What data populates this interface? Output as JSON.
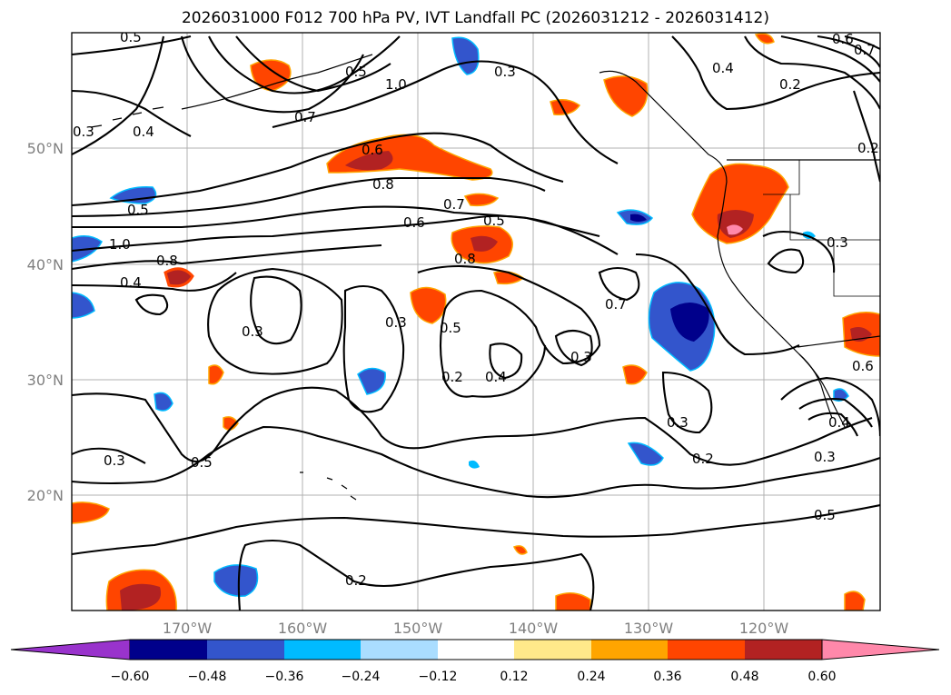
{
  "title": "2026031000 F012 700 hPa PV, IVT Landfall PC (2026031212 - 2026031412)",
  "axes": {
    "lat_ticks": [
      "50°N",
      "40°N",
      "30°N",
      "20°N"
    ],
    "lon_ticks": [
      "170°W",
      "160°W",
      "150°W",
      "140°W",
      "130°W",
      "120°W"
    ]
  },
  "contour_labels": [
    "0.5",
    "0.3",
    "0.5",
    "1.0",
    "0.8",
    "0.3",
    "0.4",
    "0.6",
    "0.2",
    "0.3",
    "0.7",
    "0.4",
    "0.6",
    "0.8",
    "0.7",
    "0.5",
    "0.6",
    "0.5",
    "1.0",
    "0.8",
    "0.4",
    "0.7",
    "0.3",
    "0.5",
    "0.3",
    "0.3",
    "0.4",
    "0.2",
    "0.5",
    "0.3",
    "0.2",
    "0.3",
    "0.5",
    "0.2",
    "0.2",
    "0.3",
    "0.4",
    "0.7",
    "0.6"
  ],
  "colorbar": {
    "tick_labels": [
      "−0.60",
      "−0.48",
      "−0.36",
      "−0.24",
      "−0.12",
      "0.12",
      "0.24",
      "0.36",
      "0.48",
      "0.60"
    ],
    "colors": [
      "#9933cc",
      "#00008b",
      "#3355cc",
      "#00bbff",
      "#aaddff",
      "#ffffff",
      "#ffe98a",
      "#ffa500",
      "#ff4500",
      "#b22222",
      "#ff88aa"
    ]
  }
}
